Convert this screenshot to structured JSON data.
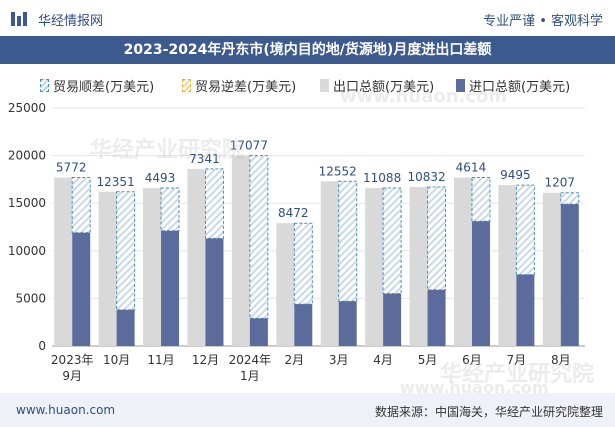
{
  "header": {
    "brand": "华经情报网",
    "tags": "专业严谨 • 客观科学"
  },
  "title": "2023-2024年丹东市(境内目的地/货源地)月度进出口差额",
  "legend": {
    "surplus": "贸易顺差(万美元)",
    "deficit": "贸易逆差(万美元)",
    "export": "出口总额(万美元)",
    "import": "进口总额(万美元)"
  },
  "colors": {
    "export": "#d9d9d9",
    "import": "#5b6b9c",
    "surplus_border": "#4a8fc1",
    "deficit_border": "#e8b33a",
    "title_bg": "#3d5a8e"
  },
  "watermarks": [
    "华经产业研究院",
    "www.huaon.com",
    "华经产业研究院",
    "www.huaon.com"
  ],
  "footer": {
    "website": "www.huaon.com",
    "source": "数据来源：中国海关，华经产业研究院整理"
  },
  "chart_data": {
    "type": "bar",
    "categories": [
      "2023年\n9月",
      "10月",
      "11月",
      "12月",
      "2024年\n1月",
      "2月",
      "3月",
      "4月",
      "5月",
      "6月",
      "7月",
      "8月"
    ],
    "ylim": [
      0,
      25000
    ],
    "yticks": [
      0,
      5000,
      10000,
      15000,
      20000,
      25000
    ],
    "grid": true,
    "legend_position": "top",
    "series": [
      {
        "name": "出口总额(万美元)",
        "values": [
          17700,
          16200,
          16600,
          18600,
          20000,
          12900,
          17300,
          16600,
          16700,
          17700,
          16900,
          16100
        ]
      },
      {
        "name": "进口总额(万美元)",
        "values": [
          11900,
          3800,
          12100,
          11300,
          2900,
          4400,
          4700,
          5500,
          5900,
          13100,
          7500,
          14900
        ]
      },
      {
        "name": "贸易顺差(万美元)",
        "values": [
          5772,
          12351,
          4493,
          7341,
          17077,
          8472,
          12552,
          11088,
          10832,
          4614,
          9495,
          1207
        ]
      }
    ]
  }
}
